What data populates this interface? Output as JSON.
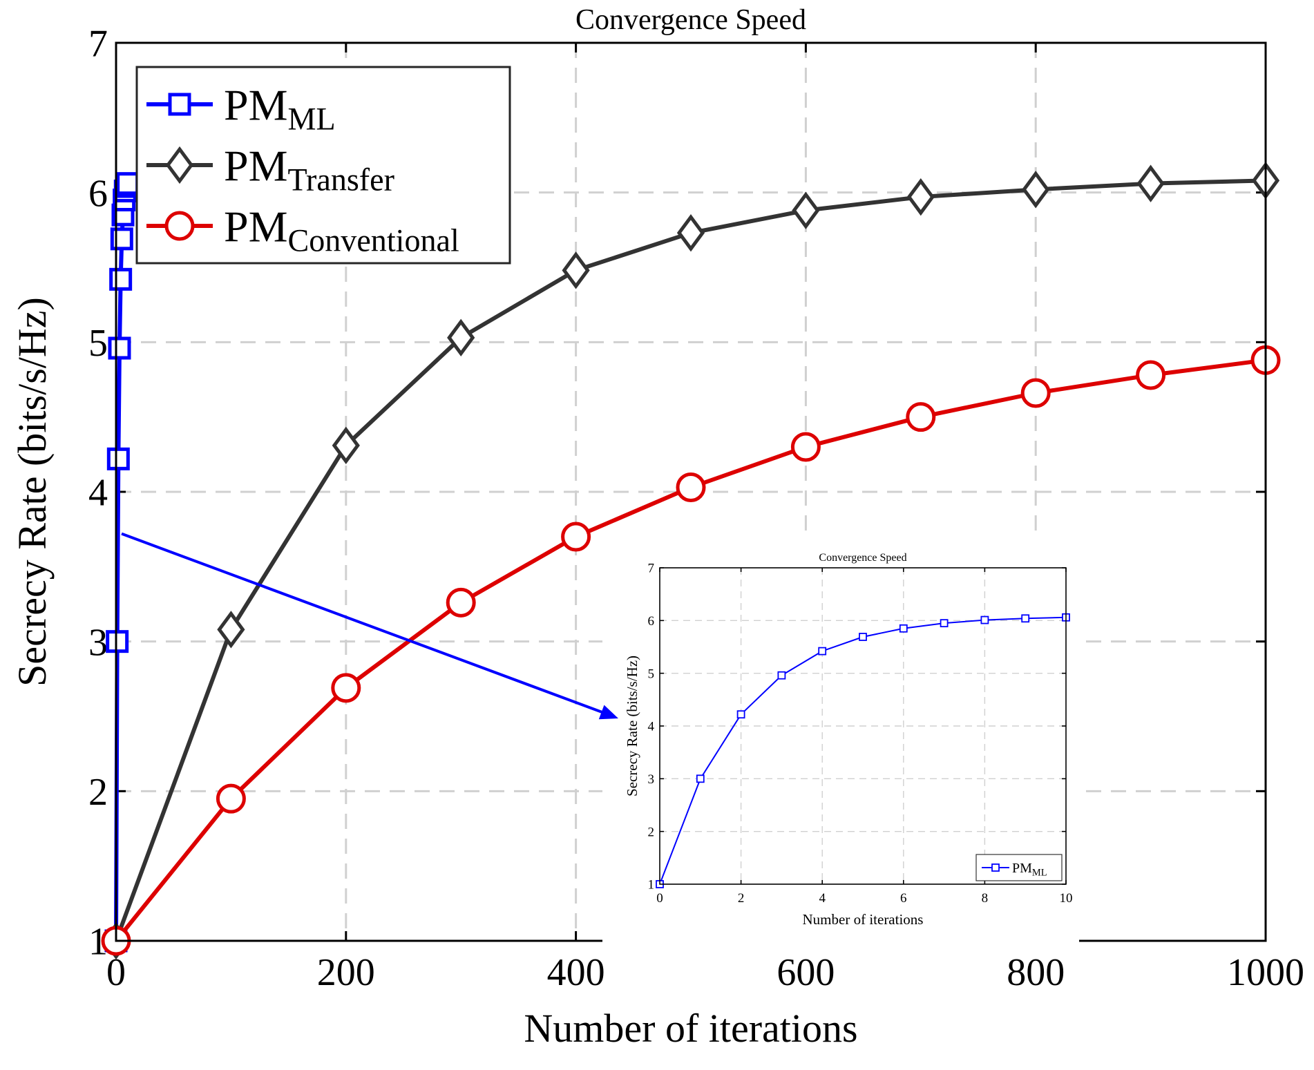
{
  "chart_data": [
    {
      "type": "line",
      "title": "Convergence Speed",
      "xlabel": "Number of iterations",
      "ylabel": "Secrecy Rate (bits/s/Hz)",
      "xlim": [
        0,
        1000
      ],
      "ylim": [
        1,
        7
      ],
      "xticks": [
        0,
        200,
        400,
        600,
        800,
        1000
      ],
      "yticks": [
        1,
        2,
        3,
        4,
        5,
        6,
        7
      ],
      "grid": true,
      "legend_position": "top-left",
      "series": [
        {
          "name": "PM",
          "name_sub": "ML",
          "color": "#0000ff",
          "marker": "square",
          "x": [
            0,
            1,
            2,
            3,
            4,
            5,
            6,
            7,
            8,
            9,
            10
          ],
          "y": [
            1.0,
            3.0,
            4.22,
            4.96,
            5.42,
            5.69,
            5.85,
            5.95,
            6.01,
            6.04,
            6.06
          ]
        },
        {
          "name": "PM",
          "name_sub": "Transfer",
          "color": "#333333",
          "marker": "diamond",
          "x": [
            0,
            100,
            200,
            300,
            400,
            500,
            600,
            700,
            800,
            900,
            1000
          ],
          "y": [
            1.0,
            3.08,
            4.31,
            5.03,
            5.48,
            5.73,
            5.88,
            5.97,
            6.02,
            6.06,
            6.08
          ]
        },
        {
          "name": "PM",
          "name_sub": "Conventional",
          "color": "#dd0000",
          "marker": "circle",
          "x": [
            0,
            100,
            200,
            300,
            400,
            500,
            600,
            700,
            800,
            900,
            1000
          ],
          "y": [
            1.0,
            1.95,
            2.69,
            3.26,
            3.7,
            4.03,
            4.3,
            4.5,
            4.66,
            4.78,
            4.88
          ]
        }
      ]
    },
    {
      "type": "line",
      "title": "Convergence Speed",
      "xlabel": "Number of iterations",
      "ylabel": "Secrecy Rate (bits/s/Hz)",
      "xlim": [
        0,
        10
      ],
      "ylim": [
        1,
        7
      ],
      "xticks": [
        0,
        2,
        4,
        6,
        8,
        10
      ],
      "yticks": [
        1,
        2,
        3,
        4,
        5,
        6,
        7
      ],
      "grid": true,
      "legend_position": "bottom-right",
      "series": [
        {
          "name": "PM",
          "name_sub": "ML",
          "color": "#0000ff",
          "marker": "square",
          "x": [
            0,
            1,
            2,
            3,
            4,
            5,
            6,
            7,
            8,
            9,
            10
          ],
          "y": [
            1.0,
            3.0,
            4.22,
            4.96,
            5.42,
            5.69,
            5.85,
            5.95,
            6.01,
            6.04,
            6.06
          ]
        }
      ]
    }
  ]
}
